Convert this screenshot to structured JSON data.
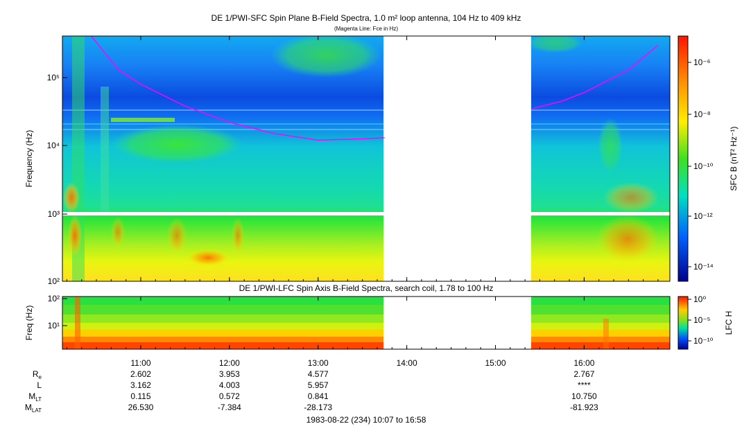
{
  "sfc": {
    "title": "DE 1/PWI-SFC  Spin Plane B-Field Spectra, 1.0 m² loop antenna, 104 Hz to 409 kHz",
    "subtitle": "(Magenta Line: Fce in Hz)",
    "ylabel": "Frequency (Hz)",
    "colorbar_label": "SFC B (nT² Hz⁻¹)",
    "ytick_labels": [
      "10²",
      "10³",
      "10⁴",
      "10⁵"
    ],
    "colorbar_tick_labels": [
      "10⁻⁶",
      "10⁻⁸",
      "10⁻¹⁰",
      "10⁻¹²",
      "10⁻¹⁴"
    ]
  },
  "lfc": {
    "title": "DE 1/PWI-LFC  Spin Axis B-Field Spectra, search coil, 1.78 to 100 Hz",
    "ylabel": "Freq (Hz)",
    "colorbar_label": "LFC H",
    "ytick_labels": [
      "10²",
      "10¹"
    ],
    "colorbar_tick_labels": [
      "10⁰",
      "10⁻⁵",
      "10⁻¹⁰"
    ]
  },
  "time_axis": {
    "tick_labels": [
      "11:00",
      "12:00",
      "13:00",
      "14:00",
      "15:00",
      "16:00"
    ],
    "footer": "1983-08-22 (234) 10:07 to 16:58"
  },
  "ephemeris": {
    "rows": [
      {
        "label": "R",
        "sub": "e",
        "values": [
          "2.602",
          "3.953",
          "4.577",
          "",
          "",
          "2.767"
        ]
      },
      {
        "label": "L",
        "sub": "",
        "values": [
          "3.162",
          "4.003",
          "5.957",
          "",
          "",
          "****"
        ]
      },
      {
        "label": "M",
        "sub": "LT",
        "values": [
          "0.115",
          "0.572",
          "0.841",
          "",
          "",
          "10.750"
        ]
      },
      {
        "label": "M",
        "sub": "LAT",
        "values": [
          "26.530",
          "-7.384",
          "-28.173",
          "",
          "",
          "-81.923"
        ]
      }
    ]
  },
  "chart_data": {
    "type": "heatmap",
    "panels": [
      {
        "name": "DE 1/PWI-SFC",
        "x_range": [
          "10:07",
          "16:58"
        ],
        "y_range_hz": [
          100,
          409000
        ],
        "y_scale": "log",
        "colorbar_range": [
          1e-15,
          1e-05
        ],
        "colorbar_scale": "log",
        "data_gaps": [
          [
            "13:47",
            "15:25"
          ]
        ],
        "band_gap_hz": [
          950,
          1050
        ],
        "fce_line": {
          "x": [
            "10:25",
            "10:45",
            "11:00",
            "11:30",
            "12:00",
            "12:30",
            "13:00",
            "13:30",
            "13:45",
            "15:25",
            "15:45",
            "16:00",
            "16:30",
            "16:50"
          ],
          "y_hz": [
            450000,
            130000,
            80000,
            38000,
            22000,
            15000,
            12000,
            12500,
            13000,
            35000,
            45000,
            60000,
            130000,
            300000
          ]
        }
      },
      {
        "name": "DE 1/PWI-LFC",
        "x_range": [
          "10:07",
          "16:58"
        ],
        "y_range_hz": [
          1.78,
          100
        ],
        "y_scale": "log",
        "colorbar_range": [
          1e-12,
          1
        ],
        "colorbar_scale": "log",
        "data_gaps": [
          [
            "13:47",
            "15:25"
          ]
        ]
      }
    ],
    "grid": false
  },
  "colors": {
    "fce_line": "#ff00ff",
    "data_gap": "#ffffff"
  }
}
